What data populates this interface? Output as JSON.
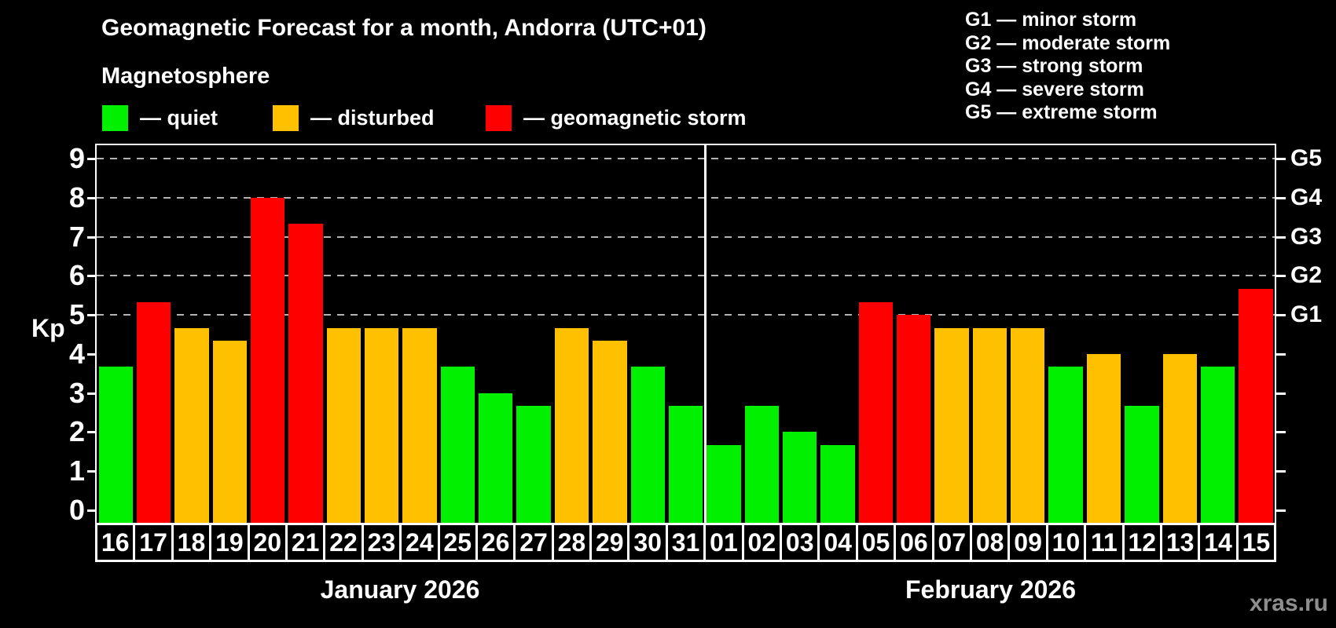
{
  "title": "Geomagnetic Forecast for a month, Andorra (UTC+01)",
  "subtitle": "Magnetosphere",
  "kp_legend": [
    {
      "key": "quiet",
      "label": "— quiet",
      "color": "#00f000"
    },
    {
      "key": "disturbed",
      "label": "— disturbed",
      "color": "#ffc000"
    },
    {
      "key": "storm",
      "label": "— geomagnetic storm",
      "color": "#ff0000"
    }
  ],
  "g_legend": [
    "G1 — minor storm",
    "G2 — moderate storm",
    "G3 — strong storm",
    "G4 — severe storm",
    "G5 — extreme storm"
  ],
  "watermark": "xras.ru",
  "chart_data": {
    "type": "bar",
    "title": "Geomagnetic Forecast for a month, Andorra (UTC+01)",
    "ylabel": "Kp",
    "ylim": [
      0,
      9.4
    ],
    "y_ticks": [
      0,
      1,
      2,
      3,
      4,
      5,
      6,
      7,
      8,
      9
    ],
    "gridlines_at": [
      5,
      6,
      7,
      8,
      9
    ],
    "grid": true,
    "legend_position": "top",
    "right_axis": [
      {
        "label": "G1",
        "value": 5
      },
      {
        "label": "G2",
        "value": 6
      },
      {
        "label": "G3",
        "value": 7
      },
      {
        "label": "G4",
        "value": 8
      },
      {
        "label": "G5",
        "value": 9
      }
    ],
    "status_colors": {
      "quiet": "#00f000",
      "disturbed": "#ffc000",
      "storm": "#ff0000"
    },
    "months": [
      {
        "label": "January 2026",
        "key": "jan"
      },
      {
        "label": "February 2026",
        "key": "feb"
      }
    ],
    "series": [
      {
        "month": "jan",
        "date": "16",
        "kp": 3.67,
        "status": "quiet"
      },
      {
        "month": "jan",
        "date": "17",
        "kp": 5.33,
        "status": "storm"
      },
      {
        "month": "jan",
        "date": "18",
        "kp": 4.67,
        "status": "disturbed"
      },
      {
        "month": "jan",
        "date": "19",
        "kp": 4.33,
        "status": "disturbed"
      },
      {
        "month": "jan",
        "date": "20",
        "kp": 8.0,
        "status": "storm"
      },
      {
        "month": "jan",
        "date": "21",
        "kp": 7.33,
        "status": "storm"
      },
      {
        "month": "jan",
        "date": "22",
        "kp": 4.67,
        "status": "disturbed"
      },
      {
        "month": "jan",
        "date": "23",
        "kp": 4.67,
        "status": "disturbed"
      },
      {
        "month": "jan",
        "date": "24",
        "kp": 4.67,
        "status": "disturbed"
      },
      {
        "month": "jan",
        "date": "25",
        "kp": 3.67,
        "status": "quiet"
      },
      {
        "month": "jan",
        "date": "26",
        "kp": 3.0,
        "status": "quiet"
      },
      {
        "month": "jan",
        "date": "27",
        "kp": 2.67,
        "status": "quiet"
      },
      {
        "month": "jan",
        "date": "28",
        "kp": 4.67,
        "status": "disturbed"
      },
      {
        "month": "jan",
        "date": "29",
        "kp": 4.33,
        "status": "disturbed"
      },
      {
        "month": "jan",
        "date": "30",
        "kp": 3.67,
        "status": "quiet"
      },
      {
        "month": "jan",
        "date": "31",
        "kp": 2.67,
        "status": "quiet"
      },
      {
        "month": "feb",
        "date": "01",
        "kp": 1.67,
        "status": "quiet"
      },
      {
        "month": "feb",
        "date": "02",
        "kp": 2.67,
        "status": "quiet"
      },
      {
        "month": "feb",
        "date": "03",
        "kp": 2.0,
        "status": "quiet"
      },
      {
        "month": "feb",
        "date": "04",
        "kp": 1.67,
        "status": "quiet"
      },
      {
        "month": "feb",
        "date": "05",
        "kp": 5.33,
        "status": "storm"
      },
      {
        "month": "feb",
        "date": "06",
        "kp": 5.0,
        "status": "storm"
      },
      {
        "month": "feb",
        "date": "07",
        "kp": 4.67,
        "status": "disturbed"
      },
      {
        "month": "feb",
        "date": "08",
        "kp": 4.67,
        "status": "disturbed"
      },
      {
        "month": "feb",
        "date": "09",
        "kp": 4.67,
        "status": "disturbed"
      },
      {
        "month": "feb",
        "date": "10",
        "kp": 3.67,
        "status": "quiet"
      },
      {
        "month": "feb",
        "date": "11",
        "kp": 4.0,
        "status": "disturbed"
      },
      {
        "month": "feb",
        "date": "12",
        "kp": 2.67,
        "status": "quiet"
      },
      {
        "month": "feb",
        "date": "13",
        "kp": 4.0,
        "status": "disturbed"
      },
      {
        "month": "feb",
        "date": "14",
        "kp": 3.67,
        "status": "quiet"
      },
      {
        "month": "feb",
        "date": "15",
        "kp": 5.67,
        "status": "storm"
      }
    ]
  }
}
